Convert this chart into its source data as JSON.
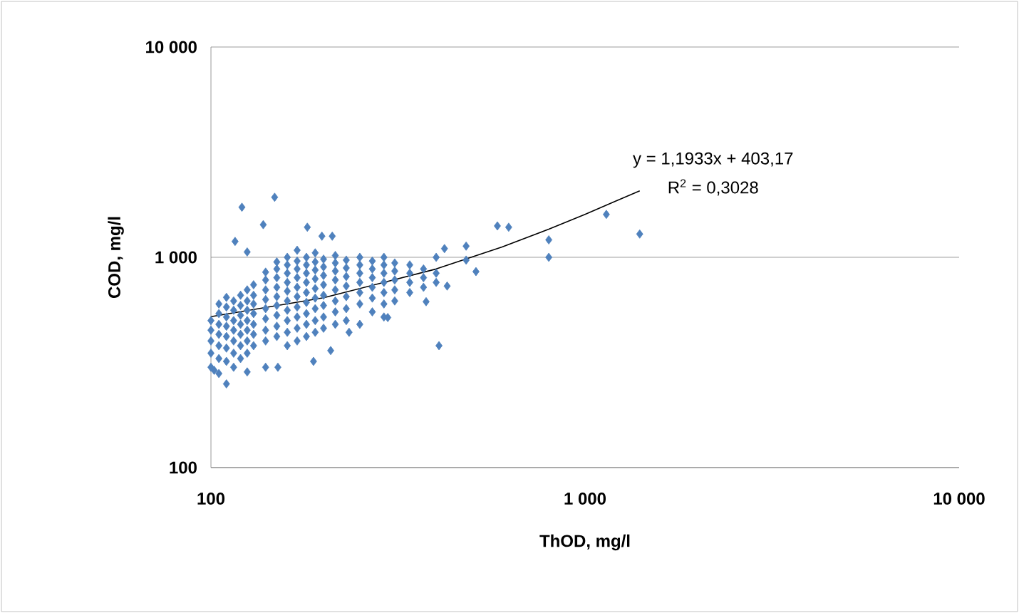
{
  "chart_data": {
    "type": "scatter",
    "xlabel": "ThOD, mg/l",
    "ylabel": "COD, mg/l",
    "log": "xy",
    "grid": "y",
    "marker": "diamond",
    "xlim": [
      100,
      10000
    ],
    "ylim": [
      100,
      10000
    ],
    "xticks": [
      100,
      {
        "value": 1000,
        "label": "1 000"
      },
      {
        "value": 10000,
        "label": "10 000"
      }
    ],
    "yticks": [
      100,
      {
        "value": 1000,
        "label": "1 000"
      },
      {
        "value": 10000,
        "label": "10 000"
      }
    ],
    "annotations": [
      "y = 1,1933x + 403,17",
      "R$^{2}$ = 0,3028"
    ],
    "series": [
      {
        "color": "#4f81bd",
        "x": [
          148,
          121,
          138,
          181,
          116,
          125,
          198,
          211,
          583,
          625,
          800,
          800,
          1140,
          1400,
          481,
          421,
          481,
          511,
          407,
          110,
          188,
          428,
          376,
          297,
          209,
          234,
          110,
          102,
          125,
          151,
          100,
          100,
          100,
          100,
          100,
          105,
          105,
          105,
          105,
          105,
          105,
          105,
          110,
          110,
          110,
          110,
          110,
          110,
          115,
          115,
          115,
          115,
          115,
          115,
          115,
          120,
          120,
          120,
          120,
          120,
          120,
          120,
          125,
          125,
          125,
          125,
          125,
          125,
          125,
          130,
          130,
          130,
          130,
          130,
          130,
          130,
          140,
          140,
          140,
          140,
          140,
          140,
          140,
          140,
          140,
          150,
          150,
          150,
          150,
          150,
          150,
          150,
          150,
          150,
          160,
          160,
          160,
          160,
          160,
          160,
          160,
          160,
          160,
          160,
          170,
          170,
          170,
          170,
          170,
          170,
          170,
          170,
          170,
          170,
          180,
          180,
          180,
          180,
          180,
          180,
          180,
          180,
          180,
          190,
          190,
          190,
          190,
          190,
          190,
          190,
          190,
          190,
          200,
          200,
          200,
          200,
          200,
          200,
          200,
          200,
          215,
          215,
          215,
          215,
          215,
          215,
          215,
          215,
          230,
          230,
          230,
          230,
          230,
          230,
          230,
          250,
          250,
          250,
          250,
          250,
          250,
          250,
          270,
          270,
          270,
          270,
          270,
          270,
          290,
          290,
          290,
          290,
          290,
          290,
          290,
          310,
          310,
          310,
          310,
          310,
          340,
          340,
          340,
          340,
          370,
          370,
          370,
          400,
          400,
          400
        ],
        "values": [
          1930,
          1730,
          1430,
          1390,
          1190,
          1060,
          1260,
          1260,
          1410,
          1390,
          1210,
          1000,
          1600,
          1290,
          1130,
          1100,
          970,
          855,
          380,
          250,
          320,
          730,
          615,
          517,
          360,
          440,
          645,
          290,
          285,
          300,
          300,
          350,
          400,
          450,
          500,
          280,
          330,
          380,
          430,
          480,
          540,
          600,
          320,
          370,
          420,
          470,
          520,
          580,
          300,
          350,
          400,
          450,
          500,
          560,
          620,
          330,
          380,
          430,
          480,
          530,
          590,
          660,
          350,
          400,
          450,
          500,
          560,
          620,
          700,
          380,
          430,
          480,
          540,
          600,
          660,
          740,
          300,
          400,
          450,
          510,
          570,
          630,
          700,
          780,
          850,
          420,
          470,
          530,
          590,
          650,
          720,
          800,
          880,
          950,
          380,
          440,
          500,
          560,
          620,
          690,
          760,
          840,
          920,
          1000,
          400,
          460,
          520,
          580,
          650,
          720,
          800,
          880,
          960,
          1080,
          420,
          480,
          540,
          610,
          680,
          760,
          840,
          920,
          1000,
          440,
          500,
          570,
          640,
          710,
          790,
          870,
          950,
          1050,
          460,
          520,
          590,
          660,
          740,
          820,
          900,
          980,
          480,
          550,
          620,
          700,
          780,
          860,
          940,
          1020,
          500,
          570,
          650,
          730,
          810,
          890,
          970,
          480,
          600,
          680,
          760,
          840,
          920,
          1000,
          550,
          640,
          720,
          800,
          880,
          960,
          520,
          600,
          680,
          760,
          840,
          920,
          1000,
          620,
          700,
          780,
          860,
          940,
          680,
          760,
          840,
          920,
          720,
          800,
          880,
          760,
          840,
          1000
        ]
      },
      {
        "type": "line",
        "color": "#000000",
        "marker": "none",
        "x": [
          100,
          200,
          400,
          600,
          800,
          1000,
          1200,
          1400
        ],
        "values": [
          522,
          642,
          880,
          1120,
          1360,
          1600,
          1840,
          2070
        ]
      }
    ]
  }
}
